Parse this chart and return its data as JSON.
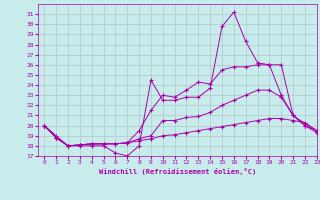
{
  "xlabel": "Windchill (Refroidissement éolien,°C)",
  "bg_color": "#c8ecec",
  "line_color": "#aa00aa",
  "grid_color": "#b0c8c8",
  "ylim": [
    17,
    32
  ],
  "xlim": [
    -0.5,
    23
  ],
  "yticks": [
    17,
    18,
    19,
    20,
    21,
    22,
    23,
    24,
    25,
    26,
    27,
    28,
    29,
    30,
    31
  ],
  "xticks": [
    0,
    1,
    2,
    3,
    4,
    5,
    6,
    7,
    8,
    9,
    10,
    11,
    12,
    13,
    14,
    15,
    16,
    17,
    18,
    19,
    20,
    21,
    22,
    23
  ],
  "lines": [
    {
      "x": [
        0,
        1,
        2,
        3,
        4,
        5,
        6,
        7,
        8,
        9,
        10,
        11,
        12,
        13,
        14,
        15,
        16,
        17,
        18,
        19,
        20,
        21,
        22,
        23
      ],
      "y": [
        20,
        19,
        18,
        18,
        18,
        18,
        17.3,
        17.0,
        18.0,
        24.5,
        22.5,
        22.5,
        22.8,
        22.8,
        23.7,
        29.8,
        31.2,
        28.3,
        26.2,
        26.0,
        26.0,
        21.0,
        20.0,
        19.3
      ]
    },
    {
      "x": [
        0,
        1,
        2,
        3,
        4,
        5,
        6,
        7,
        8,
        9,
        10,
        11,
        12,
        13,
        14,
        15,
        16,
        17,
        18,
        19,
        20,
        21,
        22,
        23
      ],
      "y": [
        20,
        18.8,
        18.0,
        18.1,
        18.2,
        18.2,
        18.2,
        18.3,
        18.7,
        19.0,
        20.5,
        20.5,
        20.8,
        20.9,
        21.3,
        22.0,
        22.5,
        23.0,
        23.5,
        23.5,
        22.8,
        21.0,
        20.2,
        19.5
      ]
    },
    {
      "x": [
        0,
        1,
        2,
        3,
        4,
        5,
        6,
        7,
        8,
        9,
        10,
        11,
        12,
        13,
        14,
        15,
        16,
        17,
        18,
        19,
        20,
        21,
        22,
        23
      ],
      "y": [
        20,
        18.8,
        18.0,
        18.1,
        18.2,
        18.2,
        18.2,
        18.3,
        19.5,
        21.5,
        23.0,
        22.8,
        23.5,
        24.3,
        24.1,
        25.5,
        25.8,
        25.8,
        26.0,
        26.0,
        23.0,
        21.0,
        20.0,
        19.5
      ]
    },
    {
      "x": [
        0,
        1,
        2,
        3,
        4,
        5,
        6,
        7,
        8,
        9,
        10,
        11,
        12,
        13,
        14,
        15,
        16,
        17,
        18,
        19,
        20,
        21,
        22,
        23
      ],
      "y": [
        20,
        18.8,
        18.0,
        18.1,
        18.2,
        18.2,
        18.2,
        18.3,
        18.5,
        18.7,
        19.0,
        19.1,
        19.3,
        19.5,
        19.7,
        19.9,
        20.1,
        20.3,
        20.5,
        20.7,
        20.7,
        20.5,
        20.3,
        19.5
      ]
    }
  ]
}
